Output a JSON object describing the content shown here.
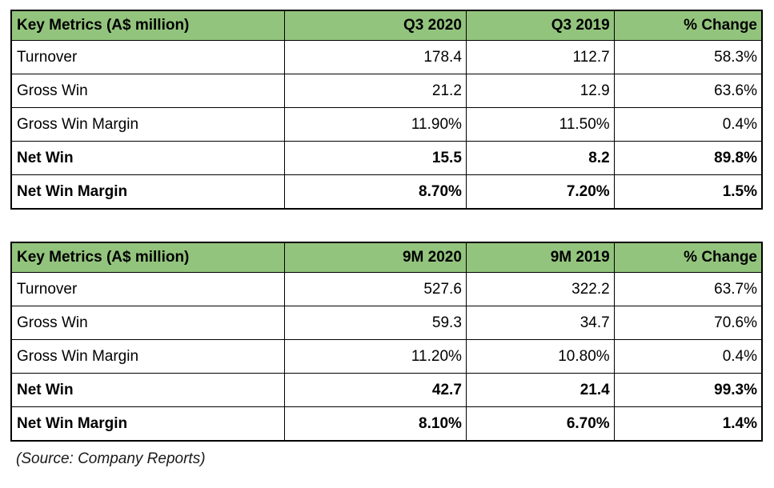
{
  "colors": {
    "header_bg": "#93c47d",
    "border": "#000000",
    "background": "#ffffff"
  },
  "chart_data": [
    {
      "type": "table",
      "title": "Key Metrics (A$ million) — Q3 comparison",
      "columns": [
        "Key Metrics (A$ million)",
        "Q3 2020",
        "Q3 2019",
        "% Change"
      ],
      "rows": [
        {
          "cells": [
            "Turnover",
            "178.4",
            "112.7",
            "58.3%"
          ],
          "bold": false
        },
        {
          "cells": [
            "Gross Win",
            "21.2",
            "12.9",
            "63.6%"
          ],
          "bold": false
        },
        {
          "cells": [
            "Gross Win Margin",
            "11.90%",
            "11.50%",
            "0.4%"
          ],
          "bold": false
        },
        {
          "cells": [
            "Net Win",
            "15.5",
            "8.2",
            "89.8%"
          ],
          "bold": true
        },
        {
          "cells": [
            "Net Win Margin",
            "8.70%",
            "7.20%",
            "1.5%"
          ],
          "bold": true
        }
      ]
    },
    {
      "type": "table",
      "title": "Key Metrics (A$ million) — 9M comparison",
      "columns": [
        "Key Metrics (A$ million)",
        "9M 2020",
        "9M 2019",
        "% Change"
      ],
      "rows": [
        {
          "cells": [
            "Turnover",
            "527.6",
            "322.2",
            "63.7%"
          ],
          "bold": false
        },
        {
          "cells": [
            "Gross Win",
            "59.3",
            "34.7",
            "70.6%"
          ],
          "bold": false
        },
        {
          "cells": [
            "Gross Win Margin",
            "11.20%",
            "10.80%",
            "0.4%"
          ],
          "bold": false
        },
        {
          "cells": [
            "Net Win",
            "42.7",
            "21.4",
            "99.3%"
          ],
          "bold": true
        },
        {
          "cells": [
            "Net Win Margin",
            "8.10%",
            "6.70%",
            "1.4%"
          ],
          "bold": true
        }
      ]
    }
  ],
  "footer": {
    "source_note": "(Source: Company Reports)"
  }
}
